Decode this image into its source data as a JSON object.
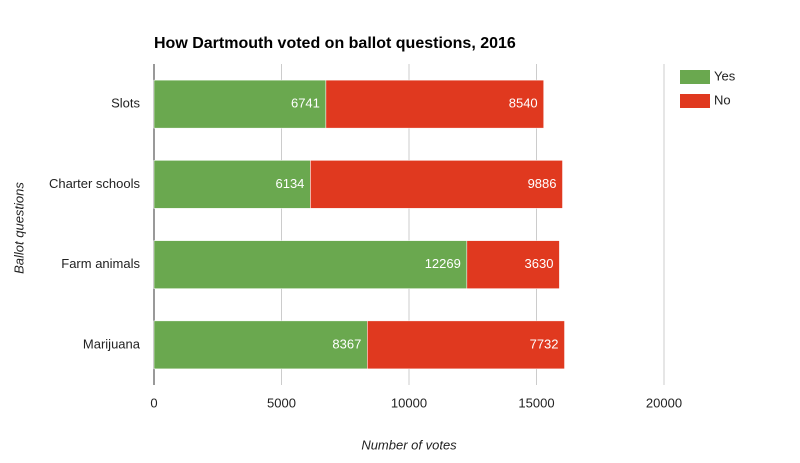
{
  "chart_data": {
    "type": "stacked_bar_horizontal",
    "title": "How Dartmouth voted on ballot questions, 2016",
    "x_label": "Number of votes",
    "y_label": "Ballot questions",
    "categories": [
      "Slots",
      "Charter schools",
      "Farm animals",
      "Marijuana"
    ],
    "series": [
      {
        "name": "Yes",
        "color": "#6aa84f",
        "values": [
          6741,
          6134,
          12269,
          8367
        ]
      },
      {
        "name": "No",
        "color": "#e0391f",
        "values": [
          8540,
          9886,
          3630,
          7732
        ]
      }
    ],
    "xlim": [
      0,
      20000
    ],
    "xticks": [
      0,
      5000,
      10000,
      15000,
      20000
    ],
    "grid": true,
    "legend": "right"
  }
}
